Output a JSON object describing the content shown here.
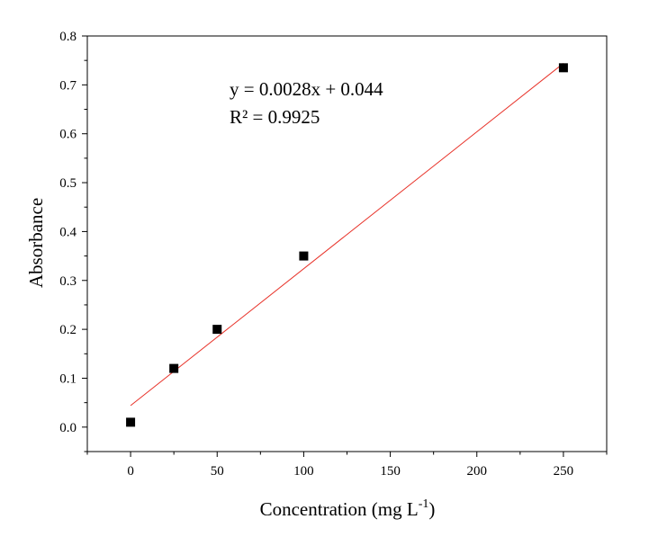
{
  "chart_data": {
    "type": "scatter",
    "xlabel": "Concentration (mg L",
    "xlabel_superscript": "-1",
    "xlabel_suffix": ")",
    "ylabel": "Absorbance",
    "xlim": [
      -25,
      275
    ],
    "ylim": [
      -0.05,
      0.8
    ],
    "xticks": [
      0,
      50,
      100,
      150,
      200,
      250
    ],
    "yticks": [
      0.0,
      0.1,
      0.2,
      0.3,
      0.4,
      0.5,
      0.6,
      0.7,
      0.8
    ],
    "x_tick_labels": [
      "0",
      "50",
      "100",
      "150",
      "200",
      "250"
    ],
    "y_tick_labels": [
      "0.0",
      "0.1",
      "0.2",
      "0.3",
      "0.4",
      "0.5",
      "0.6",
      "0.7",
      "0.8"
    ],
    "grid": false,
    "series": [
      {
        "marker": "square",
        "color": "#000000",
        "x": [
          0,
          25,
          50,
          100,
          250
        ],
        "y": [
          0.01,
          0.12,
          0.2,
          0.35,
          0.735
        ]
      }
    ],
    "fit_line": {
      "color": "#e8332a",
      "slope": 0.0028,
      "intercept": 0.044,
      "x_range": [
        0,
        250
      ]
    },
    "annotations": [
      "y = 0.0028x + 0.044",
      "R² = 0.9925"
    ]
  }
}
